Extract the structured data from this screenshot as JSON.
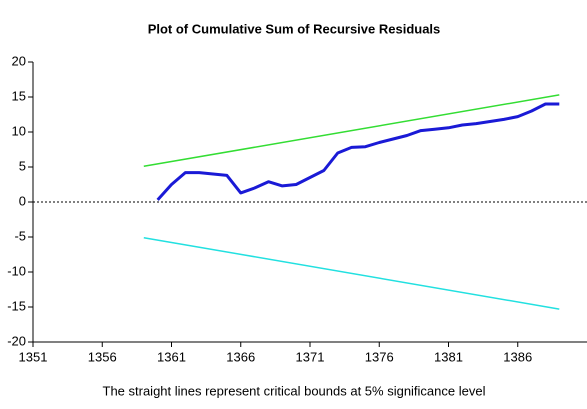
{
  "chart_data": {
    "type": "line",
    "title": "Plot of Cumulative Sum of Recursive Residuals",
    "note": "The straight lines represent critical bounds at 5% significance level",
    "series": [
      {
        "color": "#1a1ad6",
        "width": 3,
        "x": [
          1360,
          1361,
          1362,
          1363,
          1364,
          1365,
          1366,
          1367,
          1368,
          1369,
          1370,
          1371,
          1372,
          1373,
          1374,
          1375,
          1376,
          1377,
          1378,
          1379,
          1380,
          1381,
          1382,
          1383,
          1384,
          1385,
          1386,
          1387,
          1388,
          1389
        ],
        "values": [
          0.3,
          2.5,
          4.2,
          4.2,
          4.0,
          3.8,
          1.3,
          2.0,
          2.9,
          2.3,
          2.5,
          3.5,
          4.5,
          7.0,
          7.8,
          7.9,
          8.5,
          9.0,
          9.5,
          10.2,
          10.4,
          10.6,
          11.0,
          11.2,
          11.5,
          11.8,
          12.2,
          13.0,
          14.0,
          14.0
        ]
      },
      {
        "color": "#33dd33",
        "width": 1.5,
        "x": [
          1359,
          1389
        ],
        "values": [
          5.1,
          15.3
        ]
      },
      {
        "color": "#22e0e0",
        "width": 1.5,
        "x": [
          1359,
          1389
        ],
        "values": [
          -5.1,
          -15.3
        ]
      }
    ],
    "xlim": [
      1351,
      1391
    ],
    "xticks": [
      1351,
      1356,
      1361,
      1366,
      1371,
      1376,
      1381,
      1386
    ],
    "ylim": [
      -20,
      20
    ],
    "yticks": [
      -20,
      -15,
      -10,
      -5,
      0,
      5,
      10,
      15,
      20
    ],
    "zero_line": true
  }
}
